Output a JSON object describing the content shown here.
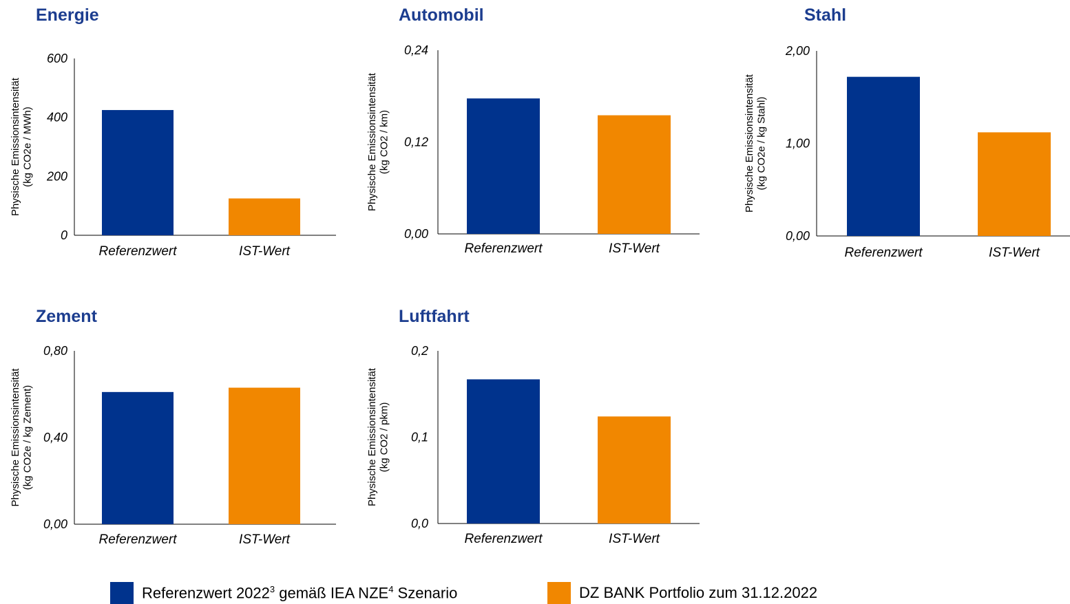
{
  "colors": {
    "referenz": "#00338d",
    "ist": "#f18700",
    "title": "#1c3d8f"
  },
  "chart_data": [
    {
      "type": "bar",
      "title": "Energie",
      "categories": [
        "Referenzwert",
        "IST-Wert"
      ],
      "values": [
        425,
        125
      ],
      "ylabel_line1": "Physische Emissionsintensität",
      "ylabel_line2": "(kg CO2e / MWh)",
      "ylim": [
        0,
        600
      ],
      "ticks": [
        0,
        200,
        400,
        600
      ],
      "tick_labels": [
        "0",
        "200",
        "400",
        "600"
      ]
    },
    {
      "type": "bar",
      "title": "Automobil",
      "categories": [
        "Referenzwert",
        "IST-Wert"
      ],
      "values": [
        0.177,
        0.155
      ],
      "ylabel_line1": "Physische Emissionsintensität",
      "ylabel_line2": "(kg CO2 / km)",
      "ylim": [
        0,
        0.24
      ],
      "ticks": [
        0,
        0.12,
        0.24
      ],
      "tick_labels": [
        "0,00",
        "0,12",
        "0,24"
      ]
    },
    {
      "type": "bar",
      "title": "Stahl",
      "categories": [
        "Referenzwert",
        "IST-Wert"
      ],
      "values": [
        1.72,
        1.12
      ],
      "ylabel_line1": "Physische Emissionsintensität",
      "ylabel_line2": "(kg CO2e / kg Stahl)",
      "ylim": [
        0,
        2.0
      ],
      "ticks": [
        0,
        1.0,
        2.0
      ],
      "tick_labels": [
        "0,00",
        "1,00",
        "2,00"
      ]
    },
    {
      "type": "bar",
      "title": "Zement",
      "categories": [
        "Referenzwert",
        "IST-Wert"
      ],
      "values": [
        0.61,
        0.63
      ],
      "ylabel_line1": "Physische Emissionsintensität",
      "ylabel_line2": "(kg CO2e / kg Zement)",
      "ylim": [
        0,
        0.8
      ],
      "ticks": [
        0,
        0.4,
        0.8
      ],
      "tick_labels": [
        "0,00",
        "0,40",
        "0,80"
      ]
    },
    {
      "type": "bar",
      "title": "Luftfahrt",
      "categories": [
        "Referenzwert",
        "IST-Wert"
      ],
      "values": [
        0.167,
        0.124
      ],
      "ylabel_line1": "Physische Emissionsintensität",
      "ylabel_line2": "(kg CO2 / pkm)",
      "ylim": [
        0,
        0.2
      ],
      "ticks": [
        0,
        0.1,
        0.2
      ],
      "tick_labels": [
        "0,0",
        "0,1",
        "0,2"
      ]
    }
  ],
  "legend": {
    "referenz_text": "Referenzwert 2022",
    "referenz_sup1": "3",
    "referenz_mid": " gemäß IEA NZE",
    "referenz_sup2": "4",
    "referenz_end": " Szenario",
    "ist_text": "DZ BANK Portfolio zum 31.12.2022"
  }
}
